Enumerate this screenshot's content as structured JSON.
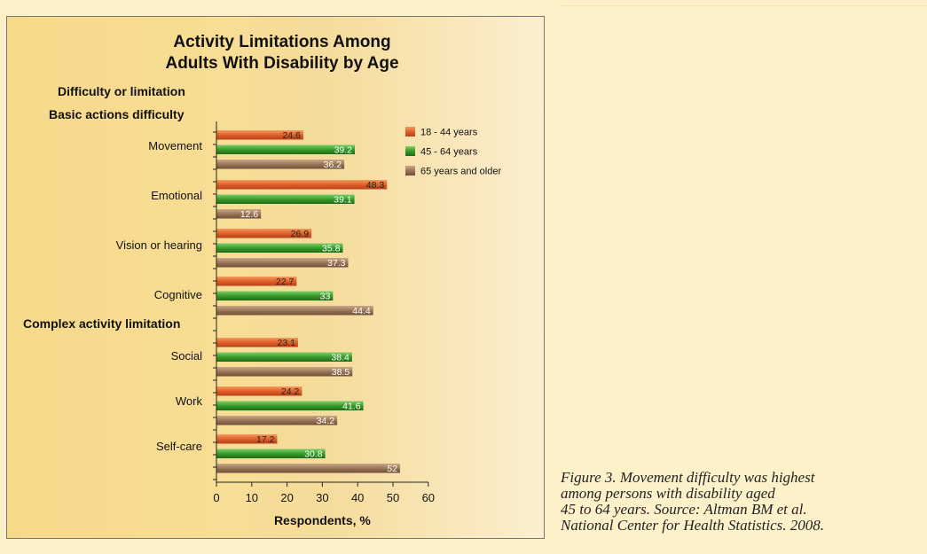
{
  "chart_data": {
    "type": "bar",
    "orientation": "horizontal",
    "title_lines": [
      "Activity Limitations Among",
      "Adults With Disability by Age"
    ],
    "groups": [
      {
        "label": "Difficulty or limitation"
      },
      {
        "label": "Basic actions difficulty"
      },
      {
        "label": "Complex activity limitation"
      }
    ],
    "categories": [
      "Movement",
      "Emotional",
      "Vision or hearing",
      "Cognitive",
      "Social",
      "Work",
      "Self-care"
    ],
    "series": [
      {
        "name": "18 - 44 years",
        "color": "#e0602a",
        "values": [
          24.6,
          48.3,
          26.9,
          22.7,
          23.1,
          24.2,
          17.2
        ],
        "labels": [
          "24.6",
          "48.3",
          "26.9",
          "22.7",
          "23.1",
          "24.2",
          "17.2"
        ]
      },
      {
        "name": "45 - 64 years",
        "color": "#3a9a2a",
        "values": [
          39.2,
          39.1,
          35.8,
          33,
          38.4,
          41.6,
          30.8
        ],
        "labels": [
          "39.2",
          "39.1",
          "35.8",
          "33",
          "38.4",
          "41.6",
          "30.8"
        ]
      },
      {
        "name": "65 years and older",
        "color": "#9c7658",
        "values": [
          36.2,
          12.6,
          37.3,
          44.4,
          38.5,
          34.2,
          52
        ],
        "labels": [
          "36.2",
          "12.6",
          "37.3",
          "44.4",
          "38.5",
          "34.2",
          "52"
        ]
      }
    ],
    "xlabel": "Respondents, %",
    "xlim": [
      0,
      60
    ],
    "xticks": [
      0,
      10,
      20,
      30,
      40,
      50,
      60
    ],
    "legend_position": "top-right"
  },
  "caption_lines": [
    "Figure 3. Movement difficulty was highest",
    "among persons with disability aged",
    "45 to 64 years. Source: Altman BM et al.",
    "National Center for Health Statistics. 2008."
  ]
}
